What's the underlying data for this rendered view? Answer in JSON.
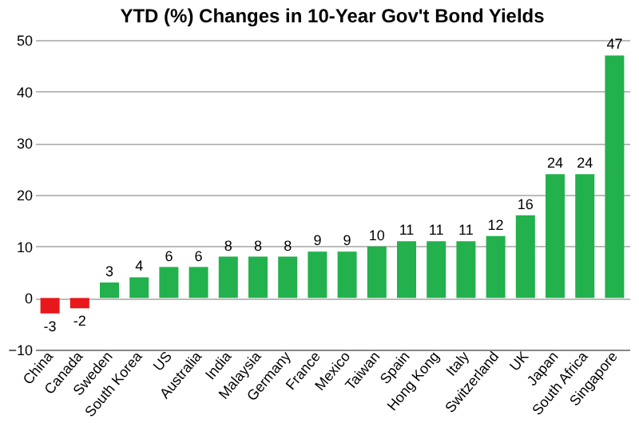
{
  "chart_data": {
    "type": "bar",
    "title": "YTD (%) Changes in 10-Year Gov't Bond Yields",
    "categories": [
      "China",
      "Canada",
      "Sweden",
      "South Korea",
      "US",
      "Australia",
      "India",
      "Malaysia",
      "Germany",
      "France",
      "Mexico",
      "Taiwan",
      "Spain",
      "Hong Kong",
      "Italy",
      "Switzerland",
      "UK",
      "Japan",
      "South Africa",
      "Singapore"
    ],
    "values": [
      -3,
      -2,
      3,
      4,
      6,
      6,
      8,
      8,
      8,
      9,
      9,
      10,
      11,
      11,
      11,
      12,
      16,
      24,
      24,
      47
    ],
    "colors": [
      "#e8171b",
      "#e8171b",
      "#22b14c",
      "#22b14c",
      "#22b14c",
      "#22b14c",
      "#22b14c",
      "#22b14c",
      "#22b14c",
      "#22b14c",
      "#22b14c",
      "#22b14c",
      "#22b14c",
      "#22b14c",
      "#22b14c",
      "#22b14c",
      "#22b14c",
      "#22b14c",
      "#22b14c",
      "#22b14c"
    ],
    "ylim": [
      -10,
      50
    ],
    "yticks": [
      -10,
      0,
      10,
      20,
      30,
      40,
      50
    ],
    "grid": "y",
    "data_labels": true
  }
}
